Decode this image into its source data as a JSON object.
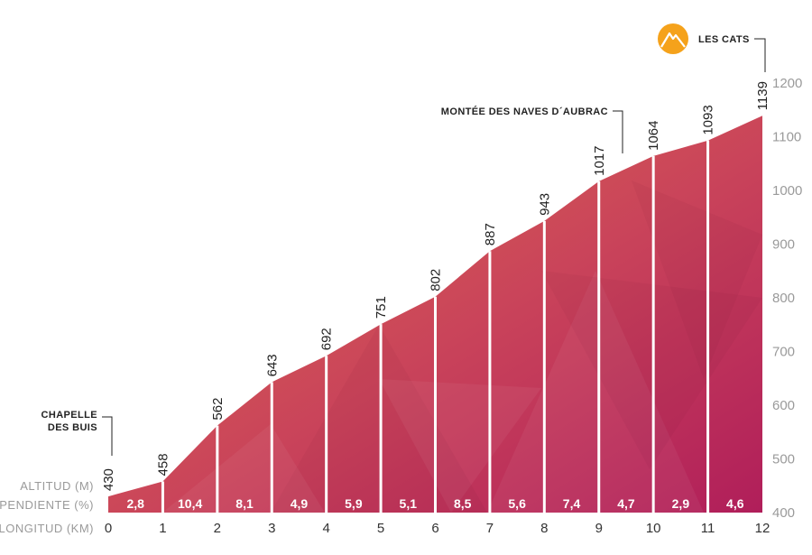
{
  "chart_data": {
    "type": "area",
    "title": "",
    "x": [
      0,
      1,
      2,
      3,
      4,
      5,
      6,
      7,
      8,
      9,
      10,
      11,
      12
    ],
    "altitudes": [
      430,
      458,
      562,
      643,
      692,
      751,
      802,
      887,
      943,
      1017,
      1064,
      1093,
      1139
    ],
    "x_tick_labels": [
      "0",
      "1",
      "2",
      "3",
      "4",
      "5",
      "6",
      "7",
      "8",
      "9",
      "10",
      "11",
      "12"
    ],
    "gradients": [
      "2,8",
      "10,4",
      "8,1",
      "4,9",
      "5,9",
      "5,1",
      "8,5",
      "5,6",
      "7,4",
      "4,7",
      "2,9",
      "4,6"
    ],
    "y_ticks": [
      400,
      500,
      600,
      700,
      800,
      900,
      1000,
      1100,
      1200
    ],
    "ylim": [
      400,
      1200
    ],
    "xlim": [
      0,
      12
    ],
    "row_labels": {
      "altitude": "ALTITUD (M)",
      "gradient": "PENDIENTE (%)",
      "distance": "LONGITUD (KM)"
    },
    "points_of_interest": [
      {
        "km": 0,
        "name_lines": [
          "CHAPELLE",
          "DES BUIS"
        ]
      },
      {
        "km": 9.5,
        "name_lines": [
          "MONTÉE DES NAVES D´AUBRAC"
        ]
      },
      {
        "km": 12,
        "name_lines": [
          "LES CATS"
        ],
        "icon": "mountain-summit-icon"
      }
    ],
    "colors": {
      "fill_top": "#d9614e",
      "fill_bottom": "#b8245a",
      "separator": "#ffffff",
      "summit_icon": "#f5a21b"
    }
  }
}
